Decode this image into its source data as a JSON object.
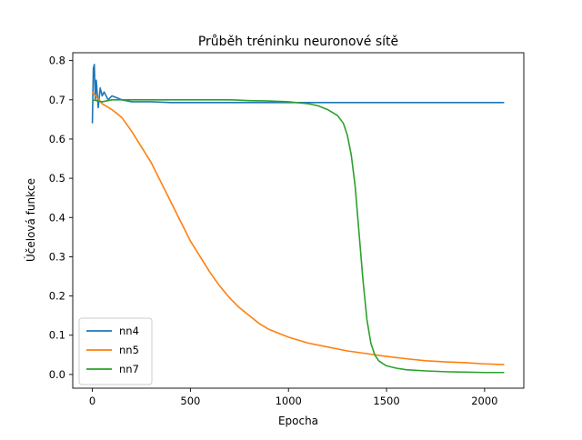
{
  "chart_data": {
    "type": "line",
    "title": "Průběh tréninku neuronové sítě",
    "xlabel": "Epocha",
    "ylabel": "Účelová funkce",
    "xlim": [
      -100,
      2200
    ],
    "ylim": [
      -0.035,
      0.82
    ],
    "x_ticks": [
      0,
      500,
      1000,
      1500,
      2000
    ],
    "y_ticks": [
      0.0,
      0.1,
      0.2,
      0.3,
      0.4,
      0.5,
      0.6,
      0.7,
      0.8
    ],
    "x_tick_labels": [
      "0",
      "500",
      "1000",
      "1500",
      "2000"
    ],
    "y_tick_labels": [
      "0.0",
      "0.1",
      "0.2",
      "0.3",
      "0.4",
      "0.5",
      "0.6",
      "0.7",
      "0.8"
    ],
    "grid": false,
    "legend_position": "lower-left",
    "series": [
      {
        "name": "nn4",
        "color": "#1f77b4",
        "x": [
          0,
          5,
          10,
          15,
          20,
          30,
          40,
          50,
          60,
          80,
          100,
          150,
          200,
          300,
          400,
          500,
          600,
          700,
          800,
          900,
          1000,
          1100,
          1200,
          1300,
          1400,
          1500,
          1600,
          1700,
          1800,
          1900,
          2000,
          2100
        ],
        "y": [
          0.64,
          0.78,
          0.79,
          0.7,
          0.75,
          0.68,
          0.73,
          0.71,
          0.72,
          0.7,
          0.71,
          0.7,
          0.695,
          0.695,
          0.693,
          0.693,
          0.693,
          0.693,
          0.693,
          0.693,
          0.693,
          0.693,
          0.693,
          0.693,
          0.693,
          0.693,
          0.693,
          0.693,
          0.693,
          0.693,
          0.693,
          0.693
        ]
      },
      {
        "name": "nn5",
        "color": "#ff7f0e",
        "x": [
          0,
          50,
          100,
          150,
          200,
          250,
          300,
          350,
          400,
          450,
          500,
          550,
          600,
          650,
          700,
          750,
          800,
          850,
          900,
          1000,
          1100,
          1200,
          1300,
          1400,
          1500,
          1600,
          1700,
          1800,
          1900,
          2000,
          2100
        ],
        "y": [
          0.72,
          0.69,
          0.675,
          0.655,
          0.62,
          0.58,
          0.54,
          0.49,
          0.44,
          0.39,
          0.34,
          0.3,
          0.26,
          0.225,
          0.195,
          0.17,
          0.15,
          0.13,
          0.115,
          0.095,
          0.08,
          0.07,
          0.06,
          0.053,
          0.046,
          0.04,
          0.035,
          0.032,
          0.03,
          0.027,
          0.025
        ]
      },
      {
        "name": "nn7",
        "color": "#2ca02c",
        "x": [
          0,
          50,
          100,
          200,
          300,
          400,
          500,
          600,
          700,
          800,
          900,
          1000,
          1100,
          1150,
          1200,
          1250,
          1280,
          1300,
          1320,
          1340,
          1360,
          1380,
          1400,
          1420,
          1440,
          1460,
          1480,
          1500,
          1550,
          1600,
          1700,
          1800,
          1900,
          2000,
          2100
        ],
        "y": [
          0.7,
          0.695,
          0.7,
          0.7,
          0.7,
          0.7,
          0.7,
          0.7,
          0.7,
          0.698,
          0.697,
          0.695,
          0.69,
          0.685,
          0.675,
          0.66,
          0.64,
          0.61,
          0.56,
          0.48,
          0.36,
          0.24,
          0.14,
          0.08,
          0.05,
          0.035,
          0.028,
          0.022,
          0.016,
          0.012,
          0.009,
          0.007,
          0.006,
          0.005,
          0.005
        ]
      }
    ]
  }
}
